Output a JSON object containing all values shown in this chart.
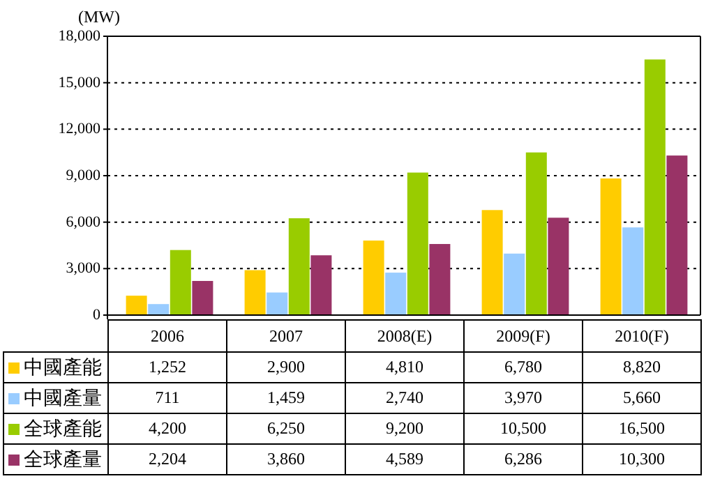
{
  "chart_data": {
    "type": "bar",
    "ylabel": "(MW)",
    "categories": [
      "2006",
      "2007",
      "2008(E)",
      "2009(F)",
      "2010(F)"
    ],
    "series": [
      {
        "name": "中國產能",
        "color": "#ffcc00",
        "values": [
          1252,
          2900,
          4810,
          6780,
          8820
        ],
        "value_labels": [
          "1,252",
          "2,900",
          "4,810",
          "6,780",
          "8,820"
        ]
      },
      {
        "name": "中國產量",
        "color": "#99ccff",
        "values": [
          711,
          1459,
          2740,
          3970,
          5660
        ],
        "value_labels": [
          "711",
          "1,459",
          "2,740",
          "3,970",
          "5,660"
        ]
      },
      {
        "name": "全球產能",
        "color": "#99cc00",
        "values": [
          4200,
          6250,
          9200,
          10500,
          16500
        ],
        "value_labels": [
          "4,200",
          "6,250",
          "9,200",
          "10,500",
          "16,500"
        ]
      },
      {
        "name": "全球產量",
        "color": "#993366",
        "values": [
          2204,
          3860,
          4589,
          6286,
          10300
        ],
        "value_labels": [
          "2,204",
          "3,860",
          "4,589",
          "6,286",
          "10,300"
        ]
      }
    ],
    "ylim": [
      0,
      18000
    ],
    "yticks": [
      0,
      {
        "value": 3000,
        "label": "3,000"
      },
      {
        "value": 6000,
        "label": "6,000"
      },
      {
        "value": 9000,
        "label": "9,000"
      },
      {
        "value": 12000,
        "label": "12,000"
      },
      {
        "value": 15000,
        "label": "15,000"
      },
      {
        "value": 18000,
        "label": "18,000"
      }
    ],
    "grid": "y",
    "legend": "bottom"
  }
}
